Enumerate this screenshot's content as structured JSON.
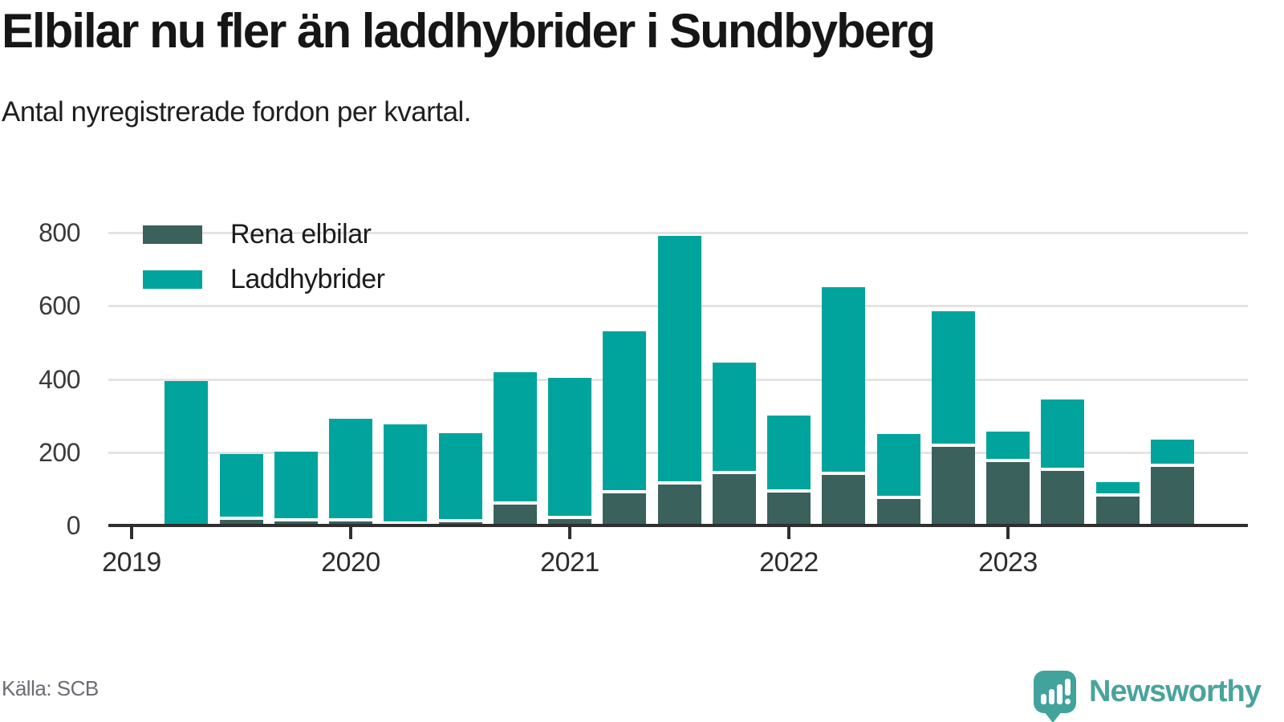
{
  "header": {
    "title": "Elbilar nu fler än laddhybrider i Sundbyberg",
    "subtitle": "Antal nyregistrerade fordon per kvartal."
  },
  "legend": {
    "items": [
      {
        "label": "Rena elbilar",
        "color": "#3a615c"
      },
      {
        "label": "Laddhybrider",
        "color": "#00a49c"
      }
    ]
  },
  "footer": {
    "source": "Källa: SCB",
    "brand": "Newsworthy"
  },
  "colors": {
    "rena_elbilar": "#3a615c",
    "laddhybrider": "#00a49c",
    "axis": "#2f2f2f",
    "grid": "#e4e4e4",
    "brand_teal": "#45a39d"
  },
  "chart_data": {
    "type": "bar",
    "stacked": true,
    "title": "Elbilar nu fler än laddhybrider i Sundbyberg",
    "subtitle": "Antal nyregistrerade fordon per kvartal.",
    "xlabel": "",
    "ylabel": "Antal nyregistrerade fordon",
    "categories": [
      "2019 K2",
      "2019 K3",
      "2019 K4",
      "2020 K1",
      "2020 K2",
      "2020 K3",
      "2020 K4",
      "2021 K1",
      "2021 K2",
      "2021 K3",
      "2021 K4",
      "2022 K1",
      "2022 K2",
      "2022 K3",
      "2022 K4",
      "2023 K1",
      "2023 K2",
      "2023 K3",
      "2023 K4"
    ],
    "series": [
      {
        "name": "Rena elbilar",
        "color": "#3a615c",
        "values": [
          0,
          16,
          11,
          10,
          3,
          8,
          58,
          17,
          87,
          112,
          140,
          89,
          139,
          72,
          215,
          173,
          150,
          79,
          160
        ]
      },
      {
        "name": "Laddhybrider",
        "color": "#00a49c",
        "values": [
          395,
          180,
          190,
          282,
          273,
          244,
          360,
          387,
          443,
          680,
          305,
          212,
          511,
          178,
          370,
          83,
          195,
          40,
          74
        ]
      }
    ],
    "totals": [
      395,
      196,
      201,
      292,
      276,
      252,
      418,
      404,
      530,
      792,
      445,
      301,
      650,
      250,
      585,
      256,
      345,
      119,
      234
    ],
    "y_ticks": [
      0,
      200,
      400,
      600,
      800
    ],
    "ylim": [
      0,
      800
    ],
    "x_ticks": [
      {
        "label": "2019",
        "q": 0
      },
      {
        "label": "2020",
        "q": 4
      },
      {
        "label": "2021",
        "q": 8
      },
      {
        "label": "2022",
        "q": 12
      },
      {
        "label": "2023",
        "q": 16
      }
    ],
    "start_offset_quarters": 1,
    "grid": "horizontal",
    "legend_position": "top-left"
  }
}
